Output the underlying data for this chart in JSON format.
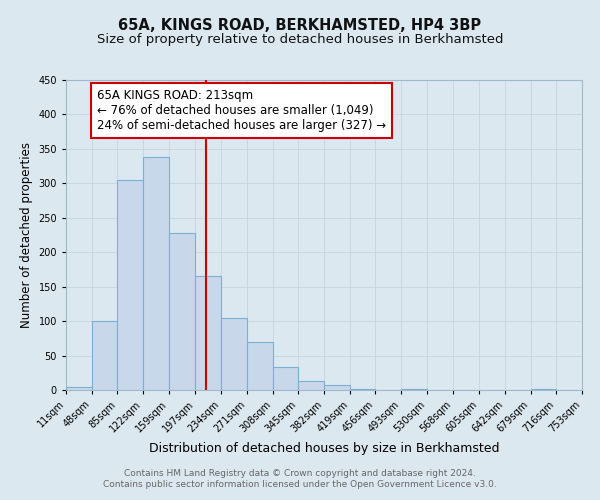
{
  "title": "65A, KINGS ROAD, BERKHAMSTED, HP4 3BP",
  "subtitle": "Size of property relative to detached houses in Berkhamsted",
  "xlabel": "Distribution of detached houses by size in Berkhamsted",
  "ylabel": "Number of detached properties",
  "bin_edges": [
    11,
    48,
    85,
    122,
    159,
    197,
    234,
    271,
    308,
    345,
    382,
    419,
    456,
    493,
    530,
    568,
    605,
    642,
    679,
    716,
    753
  ],
  "bin_counts": [
    5,
    100,
    305,
    338,
    228,
    165,
    105,
    70,
    33,
    13,
    7,
    2,
    0,
    1,
    0,
    0,
    0,
    0,
    1,
    0
  ],
  "bar_facecolor": "#c8d8ea",
  "bar_edgecolor": "#7bafd4",
  "reference_line_x": 213,
  "reference_line_color": "#cc0000",
  "annotation_line1": "65A KINGS ROAD: 213sqm",
  "annotation_line2": "← 76% of detached houses are smaller (1,049)",
  "annotation_line3": "24% of semi-detached houses are larger (327) →",
  "annotation_box_facecolor": "#ffffff",
  "annotation_box_edgecolor": "#cc0000",
  "ylim": [
    0,
    450
  ],
  "yticks": [
    0,
    50,
    100,
    150,
    200,
    250,
    300,
    350,
    400,
    450
  ],
  "grid_color": "#c8d4de",
  "background_color": "#dce8f0",
  "plot_bg_color": "#dce8f0",
  "footer_line1": "Contains HM Land Registry data © Crown copyright and database right 2024.",
  "footer_line2": "Contains public sector information licensed under the Open Government Licence v3.0.",
  "title_fontsize": 10.5,
  "subtitle_fontsize": 9.5,
  "xlabel_fontsize": 9,
  "ylabel_fontsize": 8.5,
  "tick_fontsize": 7,
  "footer_fontsize": 6.5,
  "annotation_fontsize": 8.5
}
